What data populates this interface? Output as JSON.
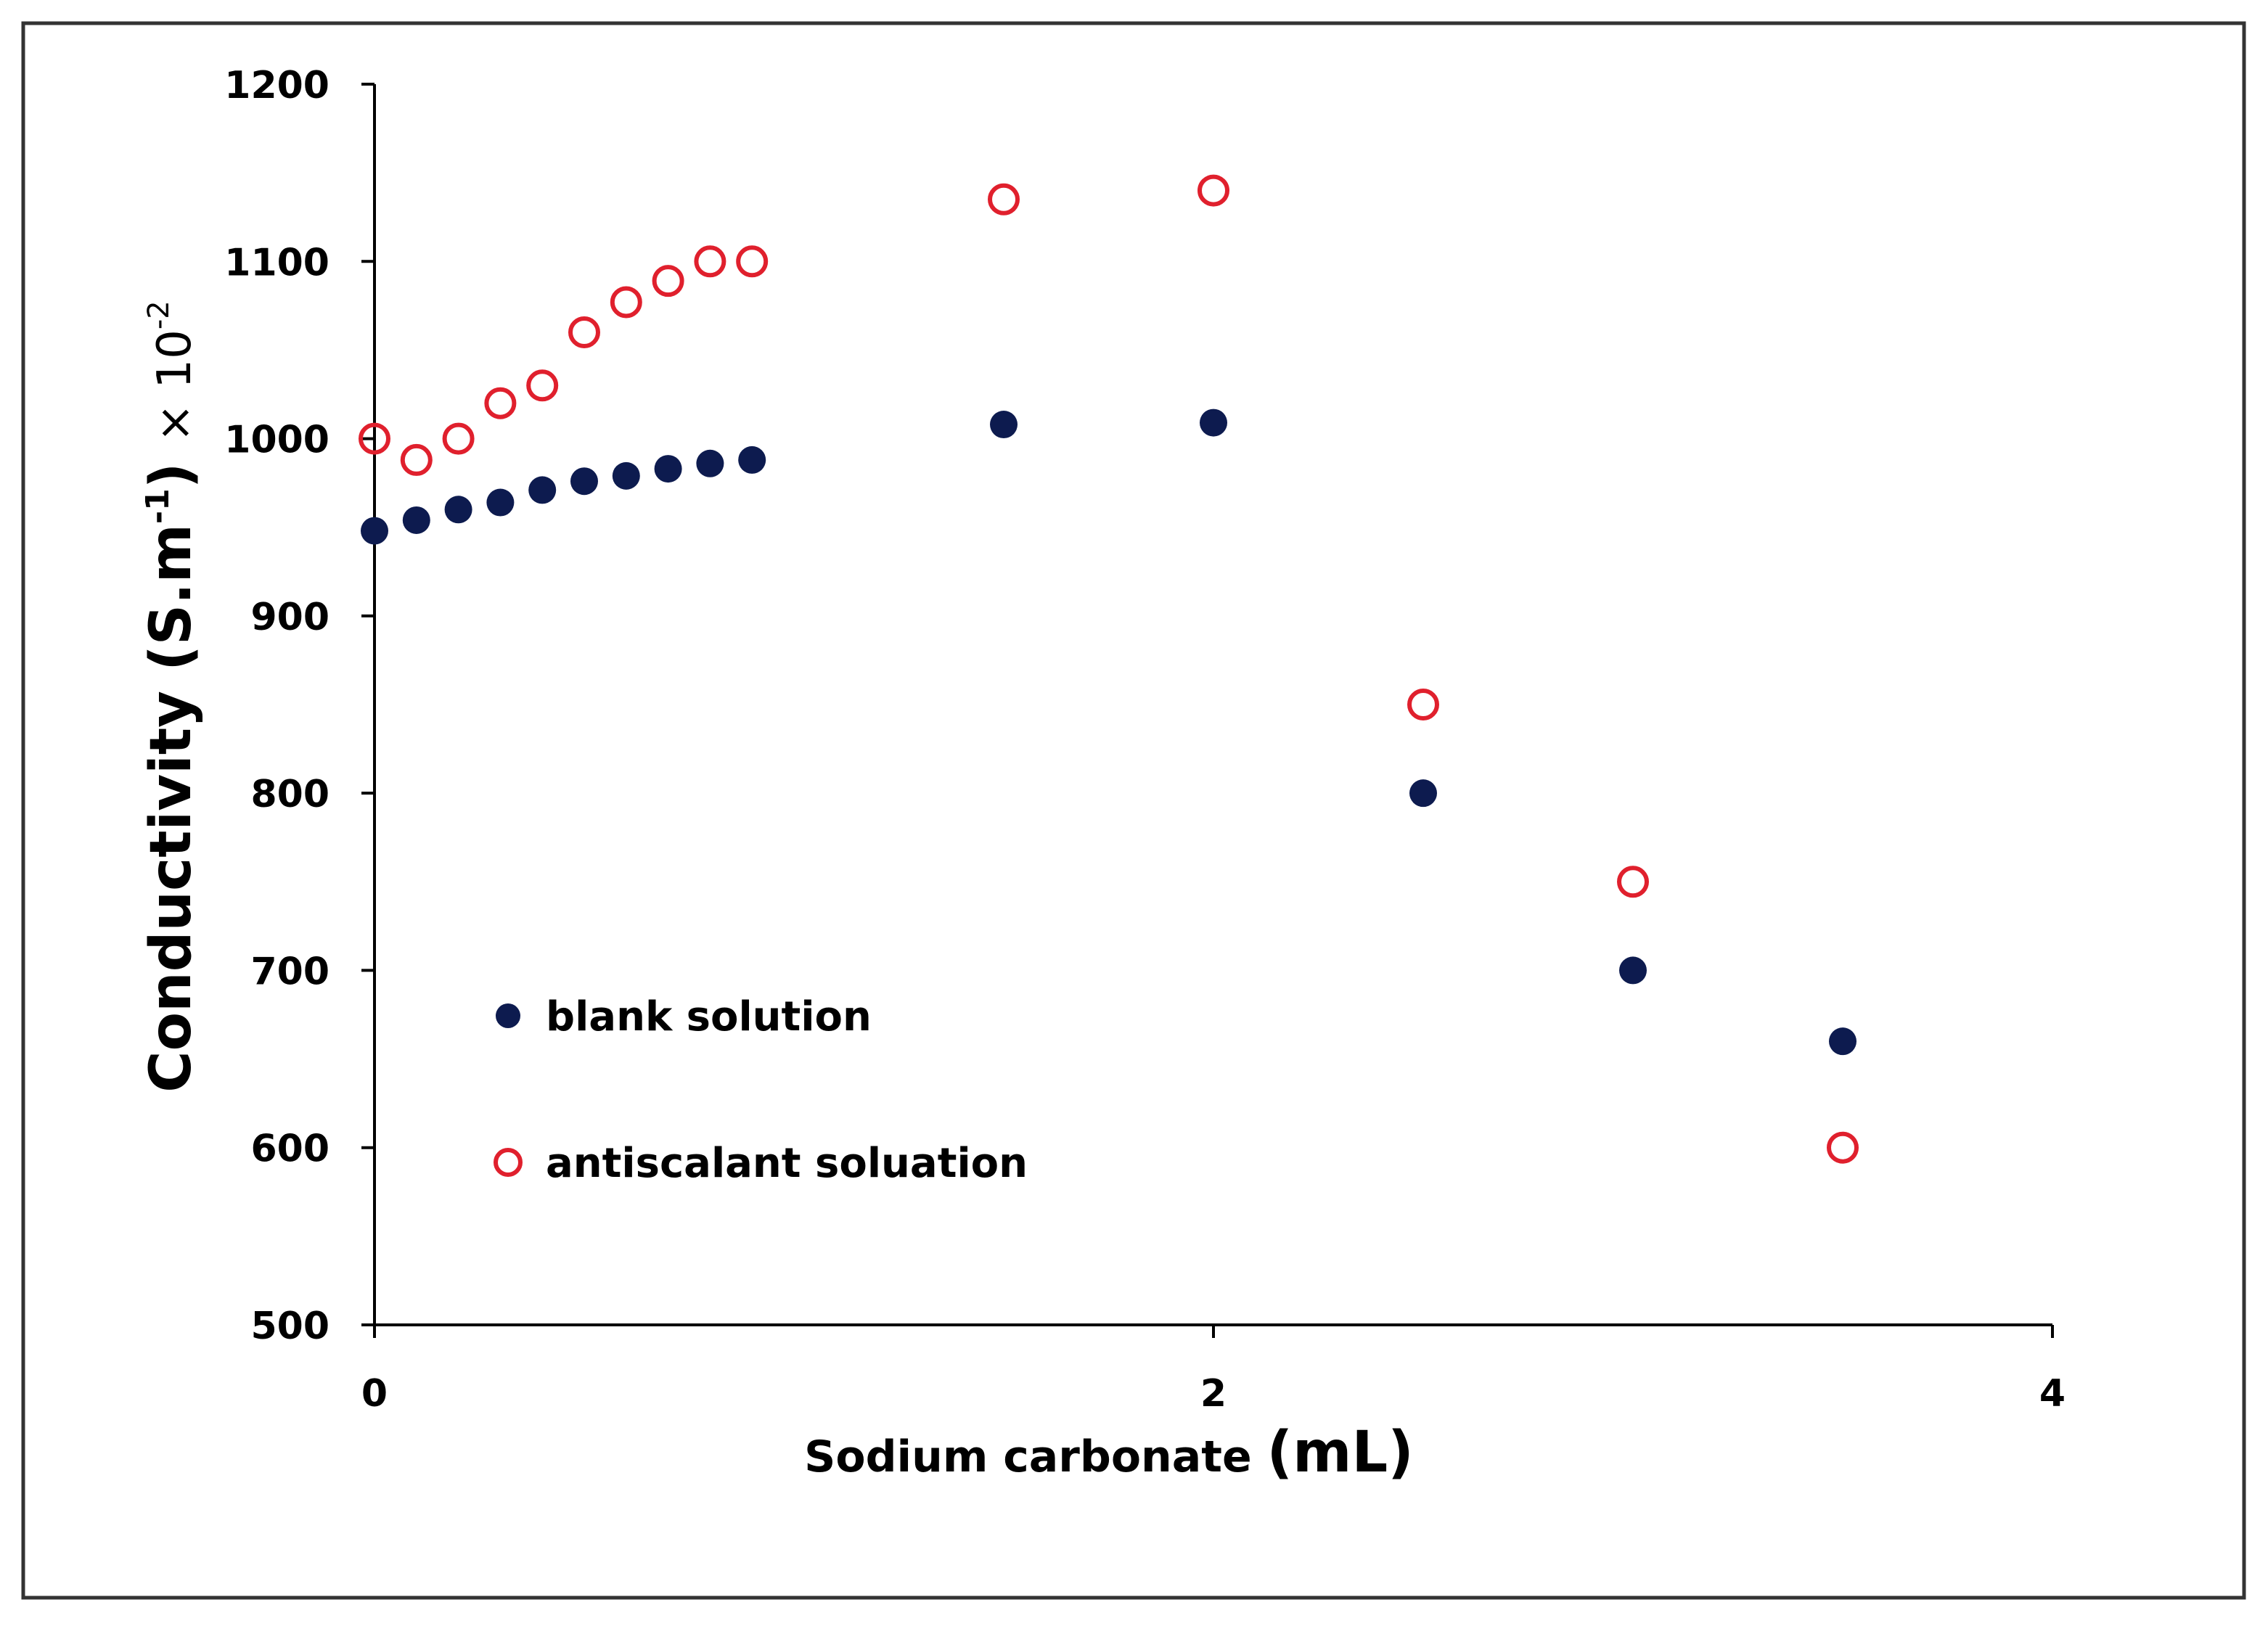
{
  "chart_data": {
    "type": "scatter",
    "title": "",
    "xlabel": "Sodium carbonate (mL)",
    "xlabel_main": "Sodium carbonate",
    "xlabel_unit": "(mL)",
    "ylabel": "Conductivity (S.m-1) ×10-2",
    "ylabel_main": "Conductivity (S.m",
    "ylabel_sup1": "-1",
    "ylabel_close": ")",
    "ylabel_mult": "× 10",
    "ylabel_sup2": "-2",
    "xlim": [
      0,
      4
    ],
    "ylim": [
      500,
      1200
    ],
    "x_ticks": [
      "0",
      "2",
      "4"
    ],
    "y_ticks": [
      "500",
      "600",
      "700",
      "800",
      "900",
      "1000",
      "1100",
      "1200"
    ],
    "grid": false,
    "legend_position": "lower-left",
    "series": [
      {
        "name": "blank solution",
        "marker": "filled-circle",
        "color": "#0d1b4f",
        "x": [
          0,
          0.1,
          0.2,
          0.3,
          0.4,
          0.5,
          0.6,
          0.7,
          0.8,
          0.9,
          1.5,
          2.0,
          2.5,
          3.0,
          3.5
        ],
        "y": [
          948,
          954,
          960,
          964,
          971,
          976,
          979,
          983,
          986,
          988,
          1008,
          1009,
          800,
          700,
          660
        ]
      },
      {
        "name": "antiscalant soluation",
        "marker": "open-circle",
        "color": "#e0202d",
        "x": [
          0,
          0.1,
          0.2,
          0.3,
          0.4,
          0.5,
          0.6,
          0.7,
          0.8,
          0.9,
          1.5,
          2.0,
          2.5,
          3.0,
          3.5
        ],
        "y": [
          1000,
          988,
          1000,
          1020,
          1030,
          1060,
          1077,
          1089,
          1100,
          1100,
          1135,
          1140,
          850,
          750,
          600
        ]
      }
    ]
  }
}
